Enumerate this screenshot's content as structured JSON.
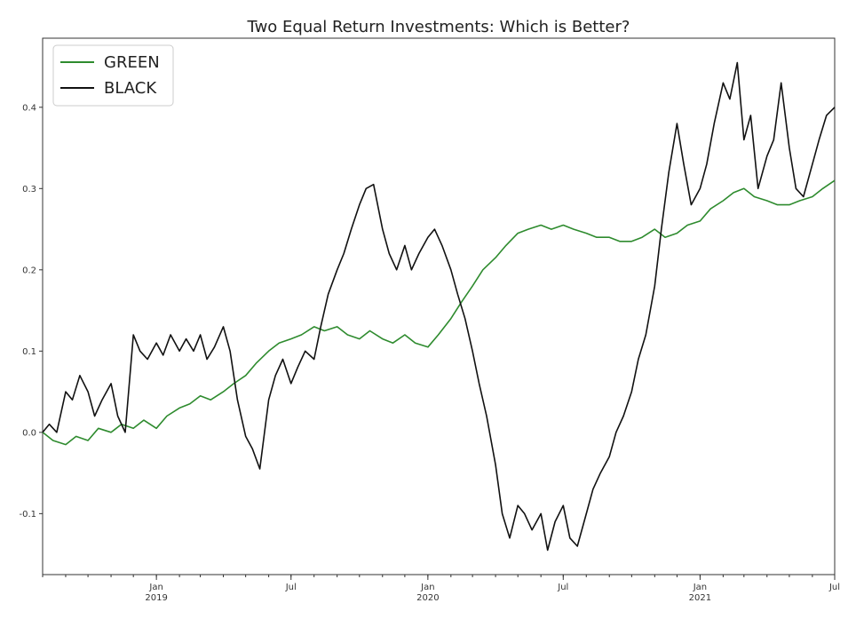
{
  "chart_data": {
    "type": "line",
    "title": "Two Equal Return Investments: Which is Better?",
    "xlabel": "",
    "ylabel": "",
    "xlim": [
      "2018-08-01",
      "2021-07-01"
    ],
    "ylim": [
      -0.175,
      0.485
    ],
    "grid": false,
    "legend": "top-left",
    "x_ticks": [
      {
        "date": "2019-01-01",
        "label": "Jan",
        "year": "2019"
      },
      {
        "date": "2019-07-01",
        "label": "Jul",
        "year": ""
      },
      {
        "date": "2020-01-01",
        "label": "Jan",
        "year": "2020"
      },
      {
        "date": "2020-07-01",
        "label": "Jul",
        "year": ""
      },
      {
        "date": "2021-01-01",
        "label": "Jan",
        "year": "2021"
      },
      {
        "date": "2021-07-01",
        "label": "Jul",
        "year": ""
      }
    ],
    "y_ticks": [
      -0.1,
      0.0,
      0.1,
      0.2,
      0.3,
      0.4
    ],
    "y_tick_labels": [
      "-0.1",
      "0.0",
      "0.1",
      "0.2",
      "0.3",
      "0.4"
    ],
    "series": [
      {
        "name": "GREEN",
        "color": "#2e8b2e",
        "points": [
          [
            "2018-08-01",
            0.0
          ],
          [
            "2018-08-15",
            -0.01
          ],
          [
            "2018-09-01",
            -0.015
          ],
          [
            "2018-09-15",
            -0.005
          ],
          [
            "2018-10-01",
            -0.01
          ],
          [
            "2018-10-15",
            0.005
          ],
          [
            "2018-11-01",
            0.0
          ],
          [
            "2018-11-15",
            0.01
          ],
          [
            "2018-12-01",
            0.005
          ],
          [
            "2018-12-15",
            0.015
          ],
          [
            "2019-01-01",
            0.005
          ],
          [
            "2019-01-15",
            0.02
          ],
          [
            "2019-02-01",
            0.03
          ],
          [
            "2019-02-15",
            0.035
          ],
          [
            "2019-03-01",
            0.045
          ],
          [
            "2019-03-15",
            0.04
          ],
          [
            "2019-04-01",
            0.05
          ],
          [
            "2019-04-15",
            0.06
          ],
          [
            "2019-05-01",
            0.07
          ],
          [
            "2019-05-15",
            0.085
          ],
          [
            "2019-06-01",
            0.1
          ],
          [
            "2019-06-15",
            0.11
          ],
          [
            "2019-07-01",
            0.115
          ],
          [
            "2019-07-15",
            0.12
          ],
          [
            "2019-08-01",
            0.13
          ],
          [
            "2019-08-15",
            0.125
          ],
          [
            "2019-09-01",
            0.13
          ],
          [
            "2019-09-15",
            0.12
          ],
          [
            "2019-10-01",
            0.115
          ],
          [
            "2019-10-15",
            0.125
          ],
          [
            "2019-11-01",
            0.115
          ],
          [
            "2019-11-15",
            0.11
          ],
          [
            "2019-12-01",
            0.12
          ],
          [
            "2019-12-15",
            0.11
          ],
          [
            "2020-01-01",
            0.105
          ],
          [
            "2020-01-15",
            0.12
          ],
          [
            "2020-02-01",
            0.14
          ],
          [
            "2020-02-15",
            0.16
          ],
          [
            "2020-03-01",
            0.18
          ],
          [
            "2020-03-15",
            0.2
          ],
          [
            "2020-04-01",
            0.215
          ],
          [
            "2020-04-15",
            0.23
          ],
          [
            "2020-05-01",
            0.245
          ],
          [
            "2020-05-15",
            0.25
          ],
          [
            "2020-06-01",
            0.255
          ],
          [
            "2020-06-15",
            0.25
          ],
          [
            "2020-07-01",
            0.255
          ],
          [
            "2020-07-15",
            0.25
          ],
          [
            "2020-08-01",
            0.245
          ],
          [
            "2020-08-15",
            0.24
          ],
          [
            "2020-09-01",
            0.24
          ],
          [
            "2020-09-15",
            0.235
          ],
          [
            "2020-10-01",
            0.235
          ],
          [
            "2020-10-15",
            0.24
          ],
          [
            "2020-11-01",
            0.25
          ],
          [
            "2020-11-15",
            0.24
          ],
          [
            "2020-12-01",
            0.245
          ],
          [
            "2020-12-15",
            0.255
          ],
          [
            "2021-01-01",
            0.26
          ],
          [
            "2021-01-15",
            0.275
          ],
          [
            "2021-02-01",
            0.285
          ],
          [
            "2021-02-15",
            0.295
          ],
          [
            "2021-03-01",
            0.3
          ],
          [
            "2021-03-15",
            0.29
          ],
          [
            "2021-04-01",
            0.285
          ],
          [
            "2021-04-15",
            0.28
          ],
          [
            "2021-05-01",
            0.28
          ],
          [
            "2021-05-15",
            0.285
          ],
          [
            "2021-06-01",
            0.29
          ],
          [
            "2021-06-15",
            0.3
          ],
          [
            "2021-07-01",
            0.31
          ]
        ]
      },
      {
        "name": "BLACK",
        "color": "#111111",
        "points": [
          [
            "2018-08-01",
            0.0
          ],
          [
            "2018-08-10",
            0.01
          ],
          [
            "2018-08-20",
            0.0
          ],
          [
            "2018-09-01",
            0.05
          ],
          [
            "2018-09-10",
            0.04
          ],
          [
            "2018-09-20",
            0.07
          ],
          [
            "2018-10-01",
            0.05
          ],
          [
            "2018-10-10",
            0.02
          ],
          [
            "2018-10-20",
            0.04
          ],
          [
            "2018-11-01",
            0.06
          ],
          [
            "2018-11-10",
            0.02
          ],
          [
            "2018-11-20",
            0.0
          ],
          [
            "2018-12-01",
            0.12
          ],
          [
            "2018-12-10",
            0.1
          ],
          [
            "2018-12-20",
            0.09
          ],
          [
            "2019-01-01",
            0.11
          ],
          [
            "2019-01-10",
            0.095
          ],
          [
            "2019-01-20",
            0.12
          ],
          [
            "2019-02-01",
            0.1
          ],
          [
            "2019-02-10",
            0.115
          ],
          [
            "2019-02-20",
            0.1
          ],
          [
            "2019-03-01",
            0.12
          ],
          [
            "2019-03-10",
            0.09
          ],
          [
            "2019-03-20",
            0.105
          ],
          [
            "2019-04-01",
            0.13
          ],
          [
            "2019-04-10",
            0.1
          ],
          [
            "2019-04-20",
            0.04
          ],
          [
            "2019-05-01",
            -0.005
          ],
          [
            "2019-05-10",
            -0.02
          ],
          [
            "2019-05-20",
            -0.045
          ],
          [
            "2019-06-01",
            0.04
          ],
          [
            "2019-06-10",
            0.07
          ],
          [
            "2019-06-20",
            0.09
          ],
          [
            "2019-07-01",
            0.06
          ],
          [
            "2019-07-10",
            0.08
          ],
          [
            "2019-07-20",
            0.1
          ],
          [
            "2019-08-01",
            0.09
          ],
          [
            "2019-08-10",
            0.13
          ],
          [
            "2019-08-20",
            0.17
          ],
          [
            "2019-09-01",
            0.2
          ],
          [
            "2019-09-10",
            0.22
          ],
          [
            "2019-09-20",
            0.25
          ],
          [
            "2019-10-01",
            0.28
          ],
          [
            "2019-10-10",
            0.3
          ],
          [
            "2019-10-20",
            0.305
          ],
          [
            "2019-11-01",
            0.25
          ],
          [
            "2019-11-10",
            0.22
          ],
          [
            "2019-11-20",
            0.2
          ],
          [
            "2019-12-01",
            0.23
          ],
          [
            "2019-12-10",
            0.2
          ],
          [
            "2019-12-20",
            0.22
          ],
          [
            "2020-01-01",
            0.24
          ],
          [
            "2020-01-10",
            0.25
          ],
          [
            "2020-01-20",
            0.23
          ],
          [
            "2020-02-01",
            0.2
          ],
          [
            "2020-02-10",
            0.17
          ],
          [
            "2020-02-20",
            0.14
          ],
          [
            "2020-03-01",
            0.1
          ],
          [
            "2020-03-10",
            0.06
          ],
          [
            "2020-03-20",
            0.02
          ],
          [
            "2020-04-01",
            -0.04
          ],
          [
            "2020-04-10",
            -0.1
          ],
          [
            "2020-04-20",
            -0.13
          ],
          [
            "2020-05-01",
            -0.09
          ],
          [
            "2020-05-10",
            -0.1
          ],
          [
            "2020-05-20",
            -0.12
          ],
          [
            "2020-06-01",
            -0.1
          ],
          [
            "2020-06-10",
            -0.145
          ],
          [
            "2020-06-20",
            -0.11
          ],
          [
            "2020-07-01",
            -0.09
          ],
          [
            "2020-07-10",
            -0.13
          ],
          [
            "2020-07-20",
            -0.14
          ],
          [
            "2020-08-01",
            -0.1
          ],
          [
            "2020-08-10",
            -0.07
          ],
          [
            "2020-08-20",
            -0.05
          ],
          [
            "2020-09-01",
            -0.03
          ],
          [
            "2020-09-10",
            0.0
          ],
          [
            "2020-09-20",
            0.02
          ],
          [
            "2020-10-01",
            0.05
          ],
          [
            "2020-10-10",
            0.09
          ],
          [
            "2020-10-20",
            0.12
          ],
          [
            "2020-11-01",
            0.18
          ],
          [
            "2020-11-10",
            0.25
          ],
          [
            "2020-11-20",
            0.32
          ],
          [
            "2020-12-01",
            0.38
          ],
          [
            "2020-12-10",
            0.33
          ],
          [
            "2020-12-20",
            0.28
          ],
          [
            "2021-01-01",
            0.3
          ],
          [
            "2021-01-10",
            0.33
          ],
          [
            "2021-01-20",
            0.38
          ],
          [
            "2021-02-01",
            0.43
          ],
          [
            "2021-02-10",
            0.41
          ],
          [
            "2021-02-20",
            0.455
          ],
          [
            "2021-03-01",
            0.36
          ],
          [
            "2021-03-10",
            0.39
          ],
          [
            "2021-03-20",
            0.3
          ],
          [
            "2021-04-01",
            0.34
          ],
          [
            "2021-04-10",
            0.36
          ],
          [
            "2021-04-20",
            0.43
          ],
          [
            "2021-05-01",
            0.35
          ],
          [
            "2021-05-10",
            0.3
          ],
          [
            "2021-05-20",
            0.29
          ],
          [
            "2021-06-01",
            0.33
          ],
          [
            "2021-06-10",
            0.36
          ],
          [
            "2021-06-20",
            0.39
          ],
          [
            "2021-07-01",
            0.4
          ]
        ]
      }
    ]
  }
}
